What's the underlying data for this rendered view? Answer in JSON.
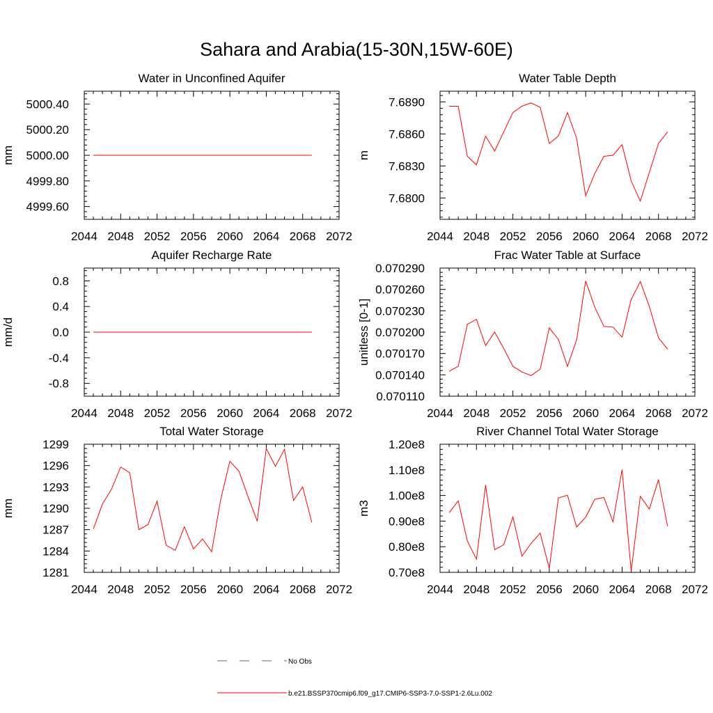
{
  "title": "Sahara and Arabia(15-30N,15W-60E)",
  "legend": {
    "items": [
      {
        "label": "No Obs",
        "color": "#5a5aa8",
        "dash": true
      },
      {
        "label": "b.e21.BSSP370cmip6.f09_g17.CMIP6-SSP3-7.0-SSP1-2.6Lu.002",
        "color": "#ff0000",
        "dash": false
      }
    ]
  },
  "line_color": "#ff0000",
  "chart_data": [
    {
      "type": "line",
      "title": "Water in Unconfined Aquifer",
      "ylabel": "mm",
      "xlim": [
        2044,
        2072
      ],
      "ylim": [
        4999.5,
        5000.5
      ],
      "xticks": [
        "2044",
        "2048",
        "2052",
        "2056",
        "2060",
        "2064",
        "2068",
        "2072"
      ],
      "yticks": [
        "4999.60",
        "4999.80",
        "5000.00",
        "5000.20",
        "5000.40"
      ],
      "x": [
        2045,
        2046,
        2047,
        2048,
        2049,
        2050,
        2051,
        2052,
        2053,
        2054,
        2055,
        2056,
        2057,
        2058,
        2059,
        2060,
        2061,
        2062,
        2063,
        2064,
        2065,
        2066,
        2067,
        2068,
        2069
      ],
      "y": [
        5000,
        5000,
        5000,
        5000,
        5000,
        5000,
        5000,
        5000,
        5000,
        5000,
        5000,
        5000,
        5000,
        5000,
        5000,
        5000,
        5000,
        5000,
        5000,
        5000,
        5000,
        5000,
        5000,
        5000,
        5000
      ]
    },
    {
      "type": "line",
      "title": "Water Table Depth",
      "ylabel": "m",
      "xlim": [
        2044,
        2072
      ],
      "ylim": [
        7.678,
        7.69
      ],
      "xticks": [
        "2044",
        "2048",
        "2052",
        "2056",
        "2060",
        "2064",
        "2068",
        "2072"
      ],
      "yticks": [
        "7.6800",
        "7.6830",
        "7.6860",
        "7.6890"
      ],
      "x": [
        2045,
        2046,
        2047,
        2048,
        2049,
        2050,
        2051,
        2052,
        2053,
        2054,
        2055,
        2056,
        2057,
        2058,
        2059,
        2060,
        2061,
        2062,
        2063,
        2064,
        2065,
        2066,
        2067,
        2068,
        2069
      ],
      "y": [
        7.6886,
        7.6886,
        7.6839,
        7.6831,
        7.6858,
        7.6844,
        7.6862,
        7.688,
        7.6886,
        7.6889,
        7.6885,
        7.6851,
        7.6858,
        7.688,
        7.6856,
        7.6802,
        7.6823,
        7.6839,
        7.684,
        7.685,
        7.6816,
        7.6797,
        7.6824,
        7.6851,
        7.6862
      ]
    },
    {
      "type": "line",
      "title": "Aquifer Recharge Rate",
      "ylabel": "mm/d",
      "xlim": [
        2044,
        2072
      ],
      "ylim": [
        -1.0,
        1.0
      ],
      "xticks": [
        "2044",
        "2048",
        "2052",
        "2056",
        "2060",
        "2064",
        "2068",
        "2072"
      ],
      "yticks": [
        "-0.8",
        "-0.4",
        "0.0",
        "0.4",
        "0.8"
      ],
      "x": [
        2045,
        2046,
        2047,
        2048,
        2049,
        2050,
        2051,
        2052,
        2053,
        2054,
        2055,
        2056,
        2057,
        2058,
        2059,
        2060,
        2061,
        2062,
        2063,
        2064,
        2065,
        2066,
        2067,
        2068,
        2069
      ],
      "y": [
        0,
        0,
        0,
        0,
        0,
        0,
        0,
        0,
        0,
        0,
        0,
        0,
        0,
        0,
        0,
        0,
        0,
        0,
        0,
        0,
        0,
        0,
        0,
        0,
        0
      ]
    },
    {
      "type": "line",
      "title": "Frac Water Table at Surface",
      "ylabel": "unitless [0-1]",
      "xlim": [
        2044,
        2072
      ],
      "ylim": [
        0.07011,
        0.07029
      ],
      "xticks": [
        "2044",
        "2048",
        "2052",
        "2056",
        "2060",
        "2064",
        "2068",
        "2072"
      ],
      "yticks": [
        "0.070110",
        "0.070140",
        "0.070170",
        "0.070200",
        "0.070230",
        "0.070260",
        "0.070290"
      ],
      "x": [
        2045,
        2046,
        2047,
        2048,
        2049,
        2050,
        2051,
        2052,
        2053,
        2054,
        2055,
        2056,
        2057,
        2058,
        2059,
        2060,
        2061,
        2062,
        2063,
        2064,
        2065,
        2066,
        2067,
        2068,
        2069
      ],
      "y": [
        0.070145,
        0.070152,
        0.070211,
        0.070218,
        0.070181,
        0.0702,
        0.070177,
        0.070152,
        0.070144,
        0.070139,
        0.070148,
        0.070206,
        0.07019,
        0.070152,
        0.070189,
        0.070272,
        0.070235,
        0.070208,
        0.070207,
        0.070193,
        0.070246,
        0.070271,
        0.070236,
        0.070192,
        0.070176
      ]
    },
    {
      "type": "line",
      "title": "Total Water Storage",
      "ylabel": "mm",
      "xlim": [
        2044,
        2072
      ],
      "ylim": [
        1281,
        1299
      ],
      "xticks": [
        "2044",
        "2048",
        "2052",
        "2056",
        "2060",
        "2064",
        "2068",
        "2072"
      ],
      "yticks": [
        "1281",
        "1284",
        "1287",
        "1290",
        "1293",
        "1296",
        "1299"
      ],
      "x": [
        2045,
        2046,
        2047,
        2048,
        2049,
        2050,
        2051,
        2052,
        2053,
        2054,
        2055,
        2056,
        2057,
        2058,
        2059,
        2060,
        2061,
        2062,
        2063,
        2064,
        2065,
        2066,
        2067,
        2068,
        2069
      ],
      "y": [
        1287.1,
        1290.6,
        1292.7,
        1295.8,
        1295.0,
        1287.0,
        1287.7,
        1291.0,
        1284.8,
        1284.1,
        1287.4,
        1284.3,
        1285.7,
        1283.9,
        1291.3,
        1296.6,
        1295.2,
        1291.6,
        1288.2,
        1298.4,
        1295.9,
        1298.3,
        1291.1,
        1293.0,
        1288.0
      ]
    },
    {
      "type": "line",
      "title": "River Channel Total Water Storage",
      "ylabel": "m3",
      "xlim": [
        2044,
        2072
      ],
      "ylim": [
        70000000,
        120000000
      ],
      "xticks": [
        "2044",
        "2048",
        "2052",
        "2056",
        "2060",
        "2064",
        "2068",
        "2072"
      ],
      "yticks": [
        "0.70e8",
        "0.80e8",
        "0.90e8",
        "1.00e8",
        "1.10e8",
        "1.20e8"
      ],
      "x": [
        2045,
        2046,
        2047,
        2048,
        2049,
        2050,
        2051,
        2052,
        2053,
        2054,
        2055,
        2056,
        2057,
        2058,
        2059,
        2060,
        2061,
        2062,
        2063,
        2064,
        2065,
        2066,
        2067,
        2068,
        2069
      ],
      "y": [
        93300000,
        97900000,
        82200000,
        75100000,
        104100000,
        78800000,
        80800000,
        91600000,
        76300000,
        81300000,
        85300000,
        71500000,
        99000000,
        100100000,
        87700000,
        91500000,
        98500000,
        99200000,
        89700000,
        110100000,
        70500000,
        99700000,
        94700000,
        106200000,
        88000000
      ]
    }
  ]
}
